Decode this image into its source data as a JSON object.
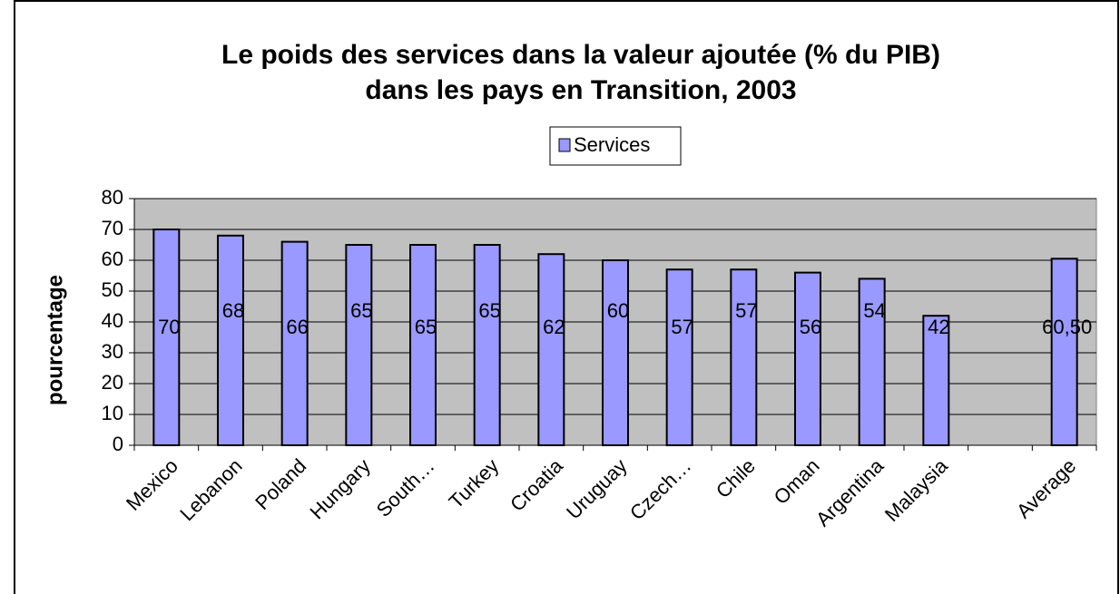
{
  "chart_data": {
    "type": "bar",
    "title": [
      "Le poids des services dans la valeur ajoutée (% du PIB)",
      "dans les pays en Transition, 2003"
    ],
    "y_label": "pourcentage",
    "categories": [
      "Mexico",
      "Lebanon",
      "Poland",
      "Hungary",
      "South…",
      "Turkey",
      "Croatia",
      "Uruguay",
      "Czech…",
      "Chile",
      "Oman",
      "Argentina",
      "Malaysia",
      null,
      "Average"
    ],
    "series": [
      {
        "name": "Services",
        "color": "#9999ff",
        "values": [
          70,
          68,
          66,
          65,
          65,
          65,
          62,
          60,
          57,
          57,
          56,
          54,
          42,
          null,
          60.5
        ],
        "value_labels": [
          "70",
          "68",
          "66",
          "65",
          "65",
          "65",
          "62",
          "60",
          "57",
          "57",
          "56",
          "54",
          "42",
          null,
          "60,50"
        ]
      }
    ],
    "ylim": [
      0,
      80
    ],
    "yticks": [
      0,
      10,
      20,
      30,
      40,
      50,
      60,
      70,
      80
    ],
    "grid": true,
    "legend": "top"
  }
}
